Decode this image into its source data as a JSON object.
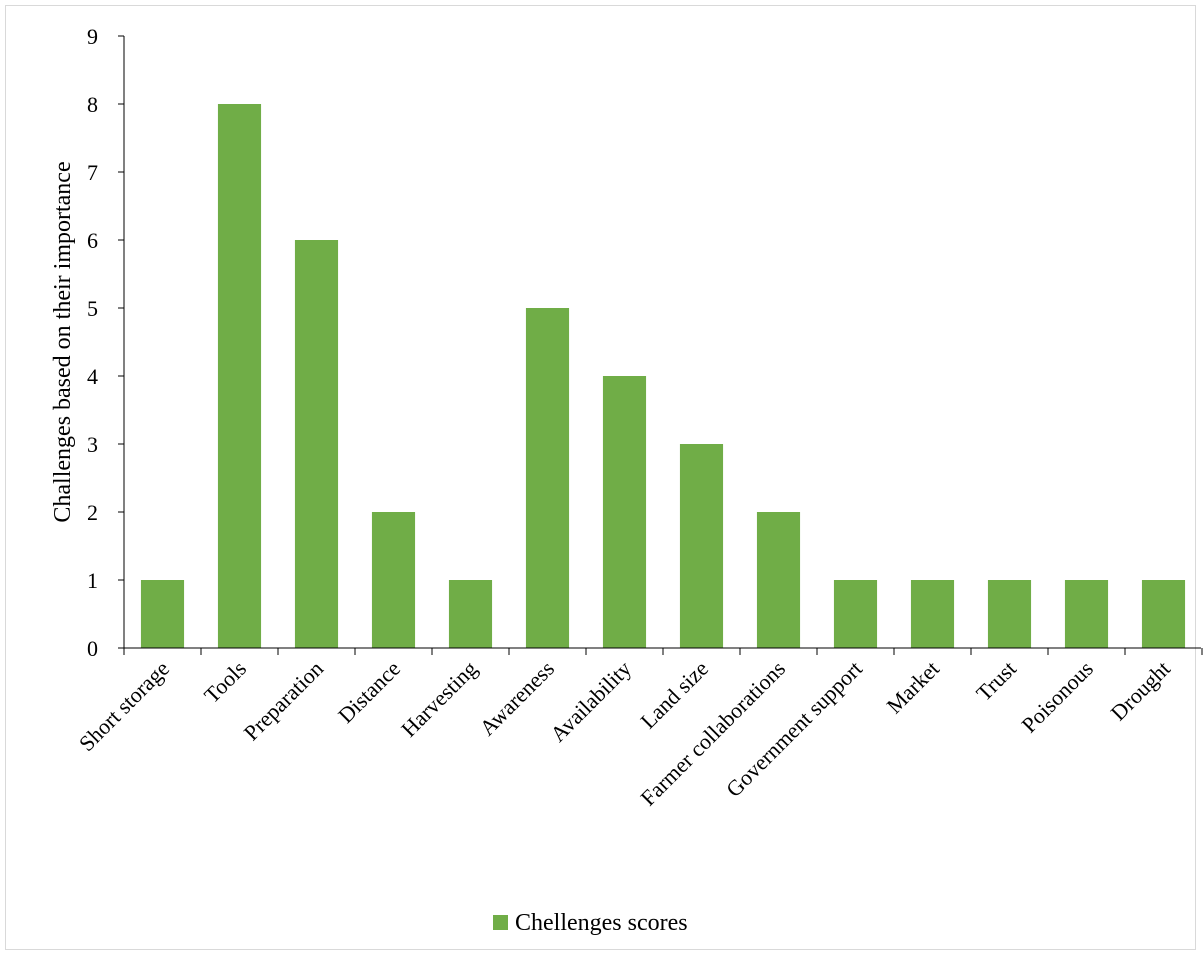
{
  "chart_data": {
    "type": "bar",
    "title": "",
    "xlabel": "",
    "ylabel": "Challenges based on their importance",
    "ylim": [
      0,
      9
    ],
    "yticks": [
      0,
      1,
      2,
      3,
      4,
      5,
      6,
      7,
      8,
      9
    ],
    "grid": false,
    "legend_position": "bottom",
    "categories": [
      "Short storage",
      "Tools",
      "Preparation",
      "Distance",
      "Harvesting",
      "Awareness",
      "Availability",
      "Land size",
      "Farmer collaborations",
      "Government support",
      "Market",
      "Trust",
      "Poisonous",
      "Drought"
    ],
    "series": [
      {
        "name": "Chellenges scores",
        "color": "#70ad47",
        "values": [
          1,
          8,
          6,
          2,
          1,
          5,
          4,
          3,
          2,
          1,
          1,
          1,
          1,
          1
        ]
      }
    ]
  }
}
